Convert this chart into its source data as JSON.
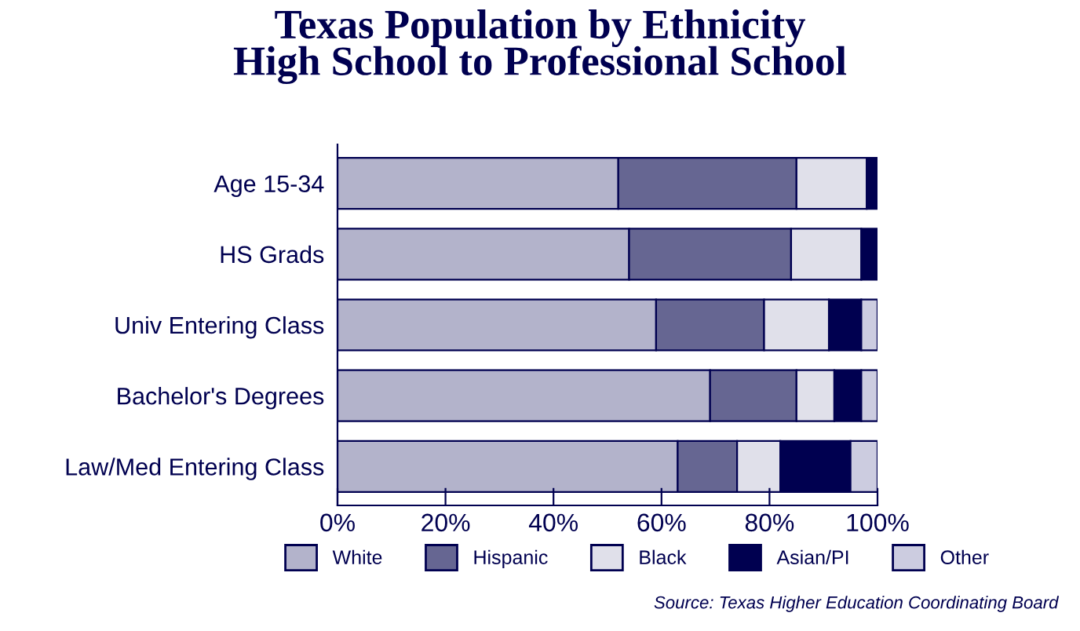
{
  "chart_data": {
    "type": "bar",
    "orientation": "horizontal",
    "stacked": true,
    "title": "Texas Population by Ethnicity\nHigh School to Professional School",
    "categories": [
      "Age 15-34",
      "HS Grads",
      "Univ Entering Class",
      "Bachelor's Degrees",
      "Law/Med Entering Class"
    ],
    "series": [
      {
        "name": "White",
        "color": "#b3b3cb",
        "values": [
          52,
          54,
          59,
          69,
          63
        ]
      },
      {
        "name": "Hispanic",
        "color": "#666692",
        "values": [
          33,
          30,
          20,
          16,
          11
        ]
      },
      {
        "name": "Black",
        "color": "#e0e0ea",
        "values": [
          13,
          13,
          12,
          7,
          8
        ]
      },
      {
        "name": "Asian/PI",
        "color": "#000050",
        "values": [
          2,
          3,
          6,
          5,
          13
        ]
      },
      {
        "name": "Other",
        "color": "#cccce0",
        "values": [
          null,
          null,
          3,
          3,
          5
        ]
      }
    ],
    "xlim": [
      0,
      100
    ],
    "xticks": [
      {
        "value": 0,
        "label": "0%"
      },
      {
        "value": 20,
        "label": "20%"
      },
      {
        "value": 40,
        "label": "40%"
      },
      {
        "value": 60,
        "label": "60%"
      },
      {
        "value": 80,
        "label": "80%"
      },
      {
        "value": 100,
        "label": "100%"
      }
    ],
    "legend": "bottom",
    "grid": false,
    "annotations": [
      "Source: Texas Higher Education Coordinating Board"
    ]
  }
}
